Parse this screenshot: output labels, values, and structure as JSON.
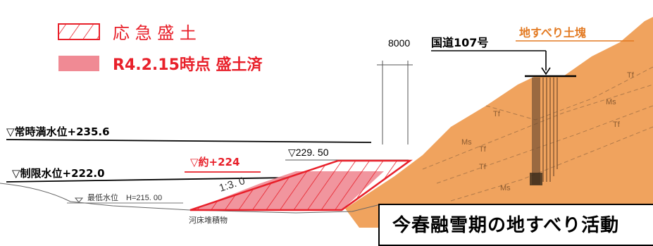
{
  "legend": {
    "emergency_fill_label": "応 急 盛 土",
    "completed_fill_label": "R4.2.15時点 盛土済"
  },
  "labels": {
    "dimension": "8000",
    "national_route": "国道107号",
    "landslide_block": "地すべり土塊",
    "normal_full_water_level": "▽常時満水位+235.6",
    "restricted_water_level": "▽制限水位+222.0",
    "approx_level": "▽約+224",
    "embankment_top": "▽229. 50",
    "slope_ratio": "1:3. 0",
    "lowest_water_level": "最低水位　H=215. 00",
    "riverbed_deposit": "河床堆積物",
    "geology_tf": "Tf",
    "geology_ms": "Ms"
  },
  "callout": {
    "text": "今春融雪期の地すべり活動"
  },
  "colors": {
    "landslide": "#F0A35E",
    "fill_red": "#E8202A",
    "fill_pink": "#F08A94",
    "label_orange": "#E37A22",
    "black": "#000000"
  }
}
